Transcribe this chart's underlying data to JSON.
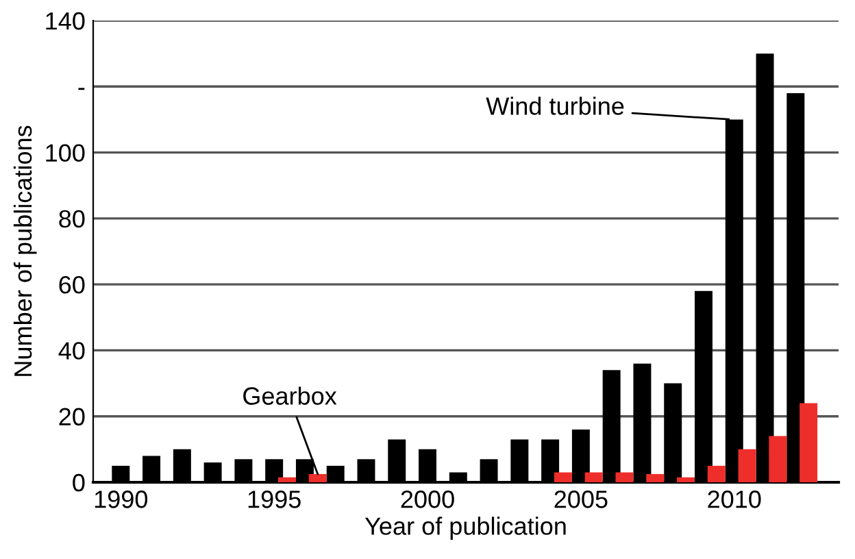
{
  "chart_data": {
    "type": "bar",
    "xlabel": "Year of publication",
    "ylabel": "Number of publications",
    "x": [
      1990,
      1991,
      1992,
      1993,
      1994,
      1995,
      1996,
      1997,
      1998,
      1999,
      2000,
      2001,
      2002,
      2003,
      2004,
      2005,
      2006,
      2007,
      2008,
      2009,
      2010,
      2011,
      2012
    ],
    "series": [
      {
        "color": "#000000",
        "values": [
          5,
          8,
          10,
          6,
          7,
          7,
          7,
          5,
          7,
          13,
          10,
          3,
          7,
          13,
          13,
          16,
          34,
          36,
          30,
          58,
          110,
          130,
          118
        ]
      },
      {
        "color": "#ee2e2b",
        "values": [
          null,
          null,
          null,
          null,
          null,
          1.5,
          2.5,
          null,
          null,
          null,
          null,
          null,
          null,
          null,
          3,
          3,
          3,
          2.5,
          1.5,
          5,
          10,
          14,
          24
        ]
      }
    ],
    "xlim": [
      1989.1,
      2013.4
    ],
    "xticks": [
      1990,
      1995,
      2000,
      2005,
      2010
    ],
    "ylim": [
      0,
      140
    ],
    "yticks": [
      0,
      20,
      40,
      60,
      80,
      100,
      {
        "value": 120,
        "label": "-"
      },
      140
    ],
    "grid": "y",
    "annotations": [
      "Wind turbine",
      {
        "text": "Gearbox",
        "x": 1996,
        "y": 2.5
      }
    ]
  }
}
